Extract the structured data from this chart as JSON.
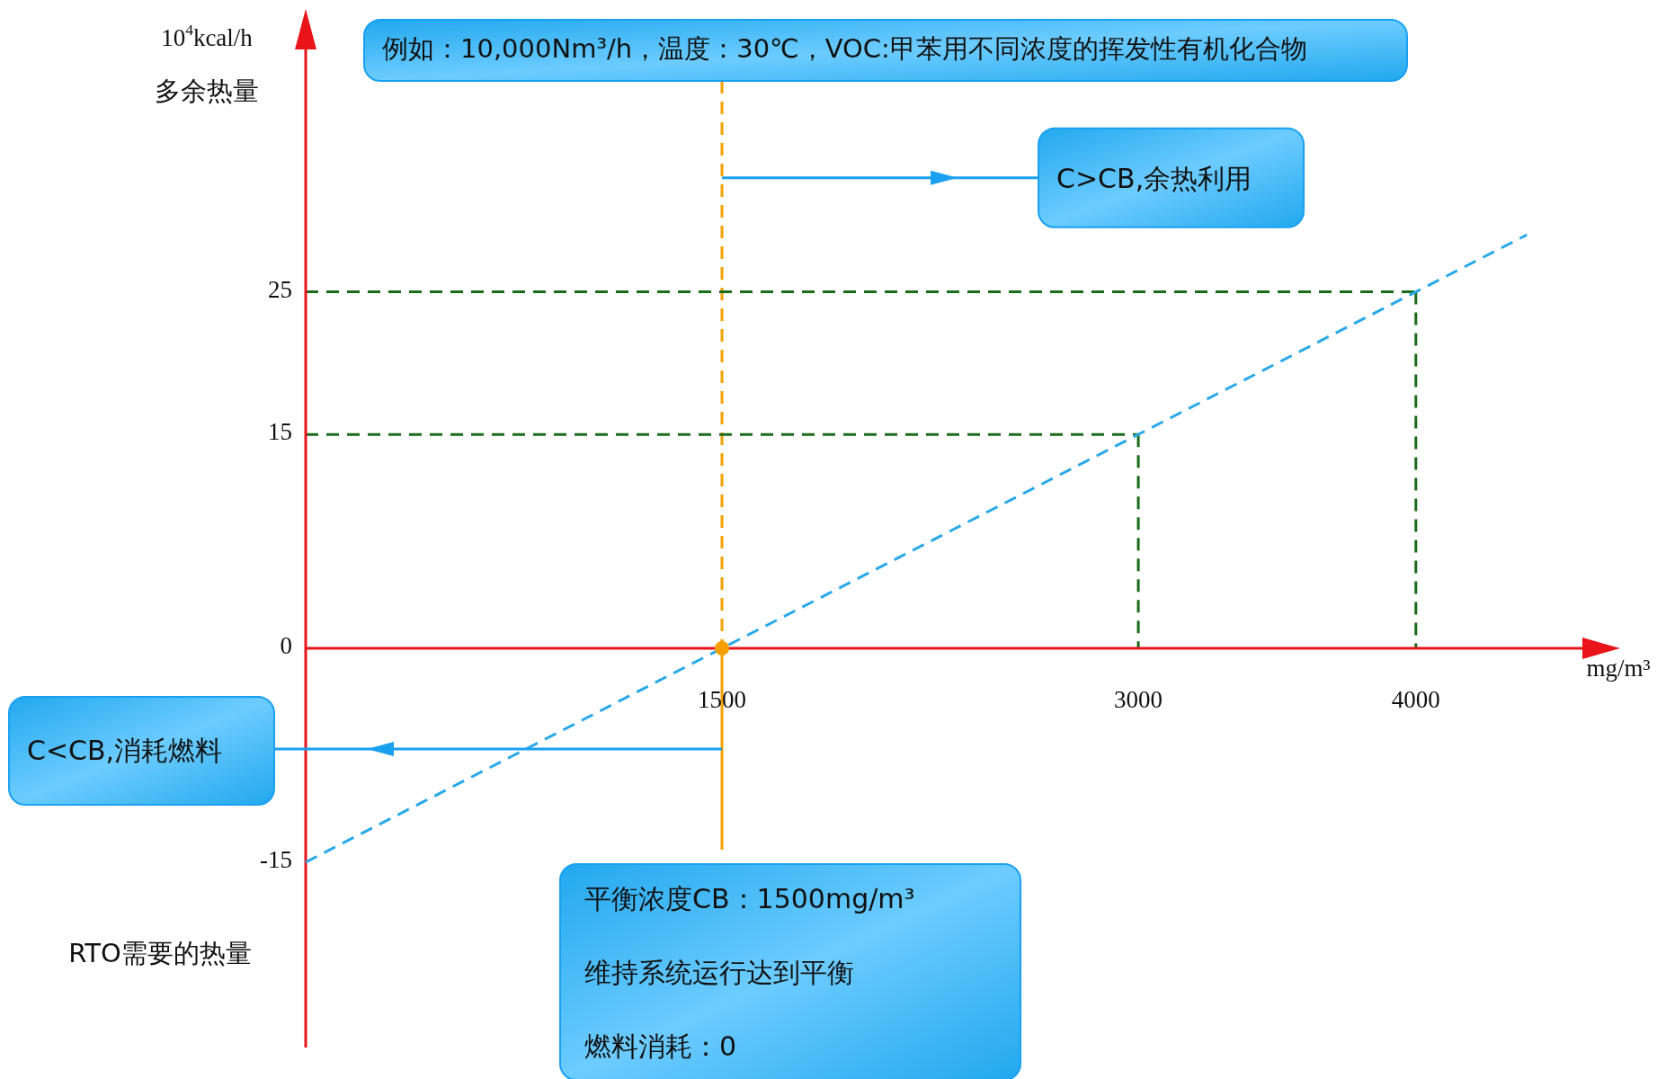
{
  "chart_data": {
    "type": "line",
    "title": "例如：10,000Nm³/h，温度：30℃，VOC:甲苯用不同浓度的挥发性有机化合物",
    "xlabel": "mg/m³",
    "ylabel": "10$^{4}$kcal/h",
    "annotations": [
      "多余热量",
      "RTO需要的热量",
      {
        "text": "C>CB,余热利用",
        "x": 1500,
        "y": 33
      },
      "C<CB,消耗燃料",
      {
        "text": "平衡浓度CB：1500mg/m³",
        "x": 1500,
        "y": 0
      },
      "维持系统运行达到平衡",
      "燃料消耗：0"
    ],
    "xlim": [
      0,
      4600
    ],
    "ylim": [
      -28,
      42
    ],
    "xticks": [
      1500,
      3000,
      4000
    ],
    "yticks": [
      -15,
      0,
      15,
      25
    ],
    "grid": false,
    "series": [
      {
        "type": "line",
        "color": "#29a9e8",
        "line_style": "dashed",
        "marker": "none",
        "x": [
          0,
          1500,
          3000,
          4000,
          4400
        ],
        "values": [
          -15,
          0,
          15,
          25,
          29
        ]
      },
      {
        "type": "scatter",
        "color": "#f5a000",
        "marker": "circle",
        "x": [
          1500
        ],
        "values": [
          0
        ]
      }
    ],
    "ref_lines": [
      {
        "axis": "x",
        "value": 1500,
        "color": "#f5a000",
        "line_style": "dashed"
      },
      {
        "axis": "y",
        "value": 15,
        "color": "#1a6b1a",
        "line_style": "dashed"
      },
      {
        "axis": "y",
        "value": 25,
        "color": "#1a6b1a",
        "line_style": "dashed"
      },
      {
        "axis": "x",
        "value": 3000,
        "color": "#1a6b1a",
        "line_style": "dashed"
      },
      {
        "axis": "x",
        "value": 4000,
        "color": "#1a6b1a",
        "line_style": "dashed"
      }
    ]
  }
}
